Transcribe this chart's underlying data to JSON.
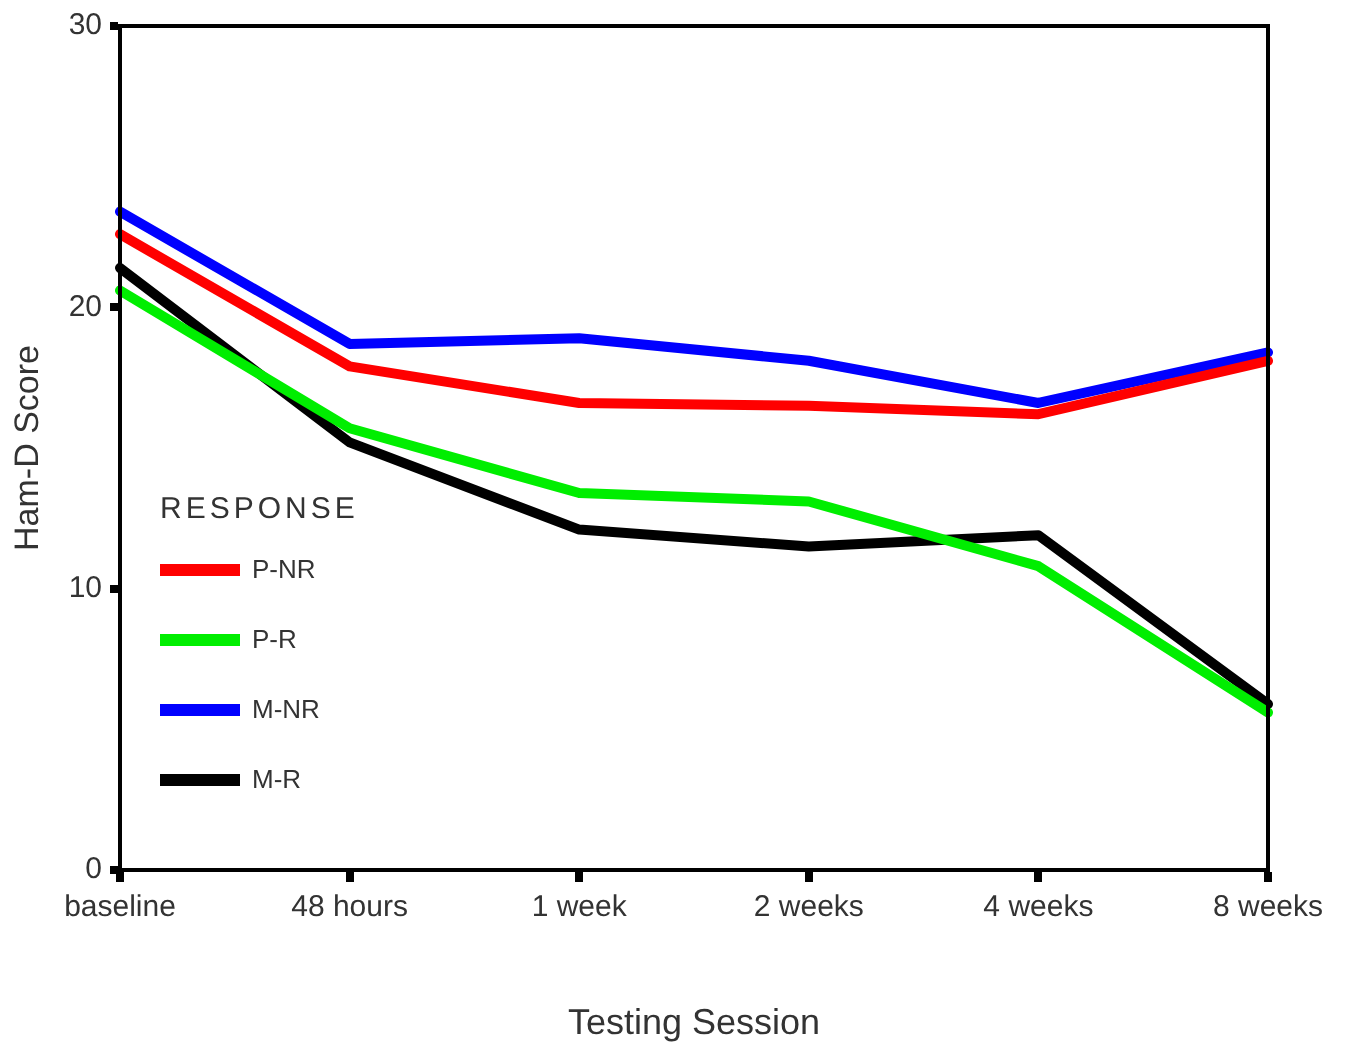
{
  "chart_data": {
    "type": "line",
    "xlabel": "Testing Session",
    "ylabel": "Ham-D Score",
    "legend_title": "RESPONSE",
    "categories": [
      "baseline",
      "48 hours",
      "1 week",
      "2 weeks",
      "4 weeks",
      "8 weeks"
    ],
    "series": [
      {
        "name": "P-NR",
        "color": "#ff0000",
        "values": [
          22.6,
          17.9,
          16.6,
          16.5,
          16.2,
          18.1
        ]
      },
      {
        "name": "P-R",
        "color": "#00ee00",
        "values": [
          20.6,
          15.7,
          13.4,
          13.1,
          10.8,
          5.6
        ]
      },
      {
        "name": "M-NR",
        "color": "#0000ff",
        "values": [
          23.4,
          18.7,
          18.9,
          18.1,
          16.6,
          18.4
        ]
      },
      {
        "name": "M-R",
        "color": "#000000",
        "values": [
          21.4,
          15.2,
          12.1,
          11.5,
          11.9,
          5.9
        ]
      }
    ],
    "ylim": [
      0,
      30
    ],
    "yticks": [
      0,
      10,
      20,
      30
    ],
    "grid": false,
    "legend": "bottom left",
    "marker": "none",
    "line_style": "solid"
  }
}
